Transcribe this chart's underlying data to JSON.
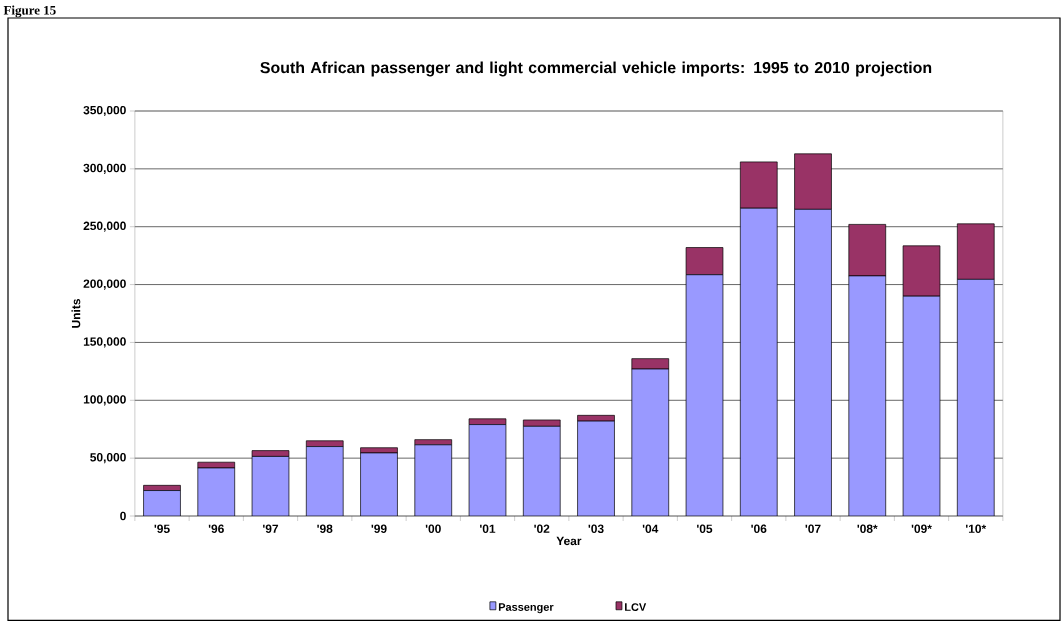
{
  "chart_data": {
    "type": "bar",
    "stacked": true,
    "title": "South African passenger and light commercial vehicle imports: 1995 to 2010 projection",
    "xlabel": "Year",
    "ylabel": "Units",
    "categories": [
      "'95",
      "'96",
      "'97",
      "'98",
      "'99",
      "'00",
      "'01",
      "'02",
      "'03",
      "'04",
      "'05",
      "'06",
      "'07",
      "'08*",
      "'09*",
      "'10*"
    ],
    "series": [
      {
        "name": "Passenger",
        "color": "#9999ff",
        "values": [
          22000,
          41500,
          51500,
          60000,
          54500,
          61500,
          79000,
          77500,
          82000,
          127000,
          208500,
          266000,
          265000,
          207500,
          190000,
          204500
        ]
      },
      {
        "name": "LCV",
        "color": "#993366",
        "values": [
          4500,
          5000,
          5000,
          5000,
          4500,
          4500,
          5000,
          5500,
          5000,
          9000,
          23500,
          40000,
          48000,
          44500,
          43500,
          48000
        ]
      }
    ],
    "ylim": [
      0,
      350000
    ],
    "yticks": [
      0,
      {
        "value": 50000,
        "label": "50,000"
      },
      {
        "value": 100000,
        "label": "100,000"
      },
      {
        "value": 150000,
        "label": "150,000"
      },
      {
        "value": 200000,
        "label": "200,000"
      },
      {
        "value": 250000,
        "label": "250,000"
      },
      {
        "value": 300000,
        "label": "300,000"
      },
      {
        "value": 350000,
        "label": "350,000"
      }
    ],
    "grid": "y",
    "legend": "bottom",
    "annotations": [
      "Figure 15"
    ]
  }
}
